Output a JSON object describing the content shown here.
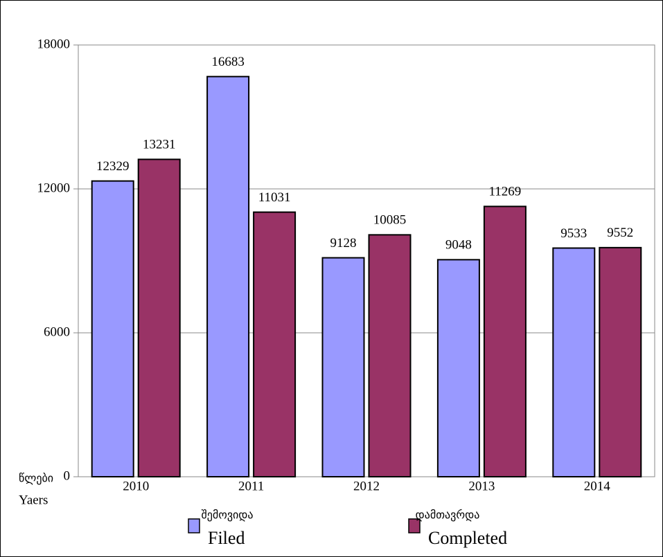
{
  "chart_data": {
    "type": "bar",
    "categories": [
      "2010",
      "2011",
      "2012",
      "2013",
      "2014"
    ],
    "x_label": [
      "წლები",
      "Yaers"
    ],
    "series": [
      {
        "name": [
          "შემოვიდა",
          "Filed"
        ],
        "color": "#9999ff",
        "values": [
          12329,
          16683,
          9128,
          9048,
          9533
        ]
      },
      {
        "name": [
          "დამთავრდა",
          "Completed"
        ],
        "color": "#993366",
        "values": [
          13231,
          11031,
          10085,
          11269,
          9552
        ]
      }
    ],
    "ylim": [
      0,
      18000
    ],
    "yticks": [
      0,
      6000,
      12000,
      18000
    ],
    "grid": true
  }
}
